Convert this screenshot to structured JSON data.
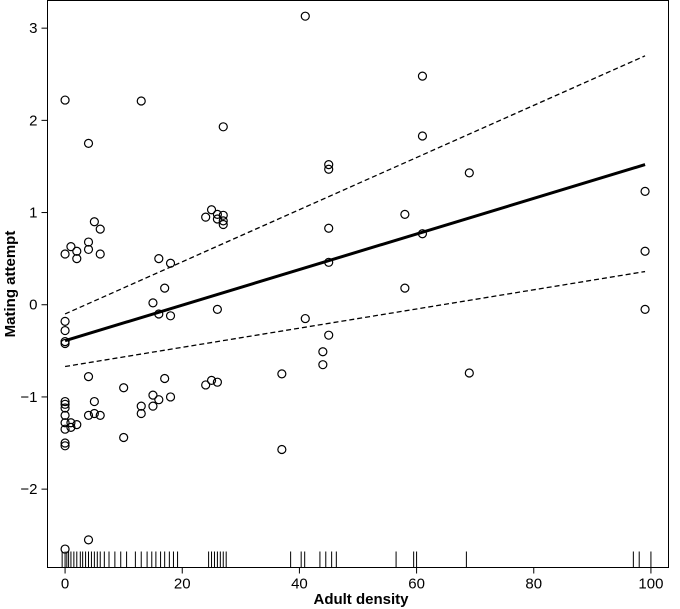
{
  "chart_data": {
    "type": "scatter",
    "xlabel": "Adult density",
    "ylabel": "Mating attempt",
    "xlim": [
      -3,
      103
    ],
    "ylim": [
      -2.85,
      3.3
    ],
    "x_ticks": [
      0,
      20,
      40,
      60,
      80,
      100
    ],
    "y_ticks": [
      -2,
      -1,
      0,
      1,
      2,
      3
    ],
    "grid": false,
    "legend": "none",
    "points": [
      {
        "x": 0,
        "y": 2.22
      },
      {
        "x": 0,
        "y": 0.55
      },
      {
        "x": 0,
        "y": -0.18
      },
      {
        "x": 0,
        "y": -0.28
      },
      {
        "x": 0,
        "y": -0.4
      },
      {
        "x": 0,
        "y": -0.42
      },
      {
        "x": 0,
        "y": -1.05
      },
      {
        "x": 0,
        "y": -1.08
      },
      {
        "x": 0,
        "y": -1.12
      },
      {
        "x": 0,
        "y": -1.2
      },
      {
        "x": 0,
        "y": -1.28
      },
      {
        "x": 0,
        "y": -1.35
      },
      {
        "x": 0,
        "y": -1.5
      },
      {
        "x": 0,
        "y": -1.53
      },
      {
        "x": 0,
        "y": -2.65
      },
      {
        "x": 1,
        "y": 0.63
      },
      {
        "x": 1,
        "y": -1.28
      },
      {
        "x": 1,
        "y": -1.33
      },
      {
        "x": 2,
        "y": 0.58
      },
      {
        "x": 2,
        "y": 0.5
      },
      {
        "x": 2,
        "y": -1.3
      },
      {
        "x": 4,
        "y": 1.75
      },
      {
        "x": 4,
        "y": 0.68
      },
      {
        "x": 4,
        "y": 0.6
      },
      {
        "x": 4,
        "y": -0.78
      },
      {
        "x": 4,
        "y": -1.2
      },
      {
        "x": 4,
        "y": -2.55
      },
      {
        "x": 5,
        "y": 0.9
      },
      {
        "x": 5,
        "y": -1.05
      },
      {
        "x": 5,
        "y": -1.18
      },
      {
        "x": 6,
        "y": 0.82
      },
      {
        "x": 6,
        "y": 0.55
      },
      {
        "x": 6,
        "y": -1.2
      },
      {
        "x": 10,
        "y": -0.9
      },
      {
        "x": 10,
        "y": -1.44
      },
      {
        "x": 13,
        "y": 2.21
      },
      {
        "x": 13,
        "y": -1.1
      },
      {
        "x": 13,
        "y": -1.18
      },
      {
        "x": 15,
        "y": 0.02
      },
      {
        "x": 15,
        "y": -0.98
      },
      {
        "x": 15,
        "y": -1.1
      },
      {
        "x": 16,
        "y": 0.5
      },
      {
        "x": 16,
        "y": -0.1
      },
      {
        "x": 16,
        "y": -1.03
      },
      {
        "x": 17,
        "y": 0.18
      },
      {
        "x": 17,
        "y": -0.8
      },
      {
        "x": 18,
        "y": 0.45
      },
      {
        "x": 18,
        "y": -0.12
      },
      {
        "x": 18,
        "y": -1.0
      },
      {
        "x": 24,
        "y": 0.95
      },
      {
        "x": 24,
        "y": -0.87
      },
      {
        "x": 25,
        "y": 1.03
      },
      {
        "x": 25,
        "y": -0.82
      },
      {
        "x": 26,
        "y": 0.98
      },
      {
        "x": 26,
        "y": 0.93
      },
      {
        "x": 26,
        "y": -0.05
      },
      {
        "x": 26,
        "y": -0.84
      },
      {
        "x": 27,
        "y": 1.93
      },
      {
        "x": 27,
        "y": 0.97
      },
      {
        "x": 27,
        "y": 0.91
      },
      {
        "x": 27,
        "y": 0.87
      },
      {
        "x": 37,
        "y": -0.75
      },
      {
        "x": 37,
        "y": -1.57
      },
      {
        "x": 41,
        "y": 3.13
      },
      {
        "x": 41,
        "y": -0.15
      },
      {
        "x": 44,
        "y": -0.51
      },
      {
        "x": 44,
        "y": -0.65
      },
      {
        "x": 45,
        "y": 1.52
      },
      {
        "x": 45,
        "y": 1.47
      },
      {
        "x": 45,
        "y": 0.83
      },
      {
        "x": 45,
        "y": 0.46
      },
      {
        "x": 45,
        "y": -0.33
      },
      {
        "x": 58,
        "y": 0.98
      },
      {
        "x": 58,
        "y": 0.18
      },
      {
        "x": 61,
        "y": 2.48
      },
      {
        "x": 61,
        "y": 1.83
      },
      {
        "x": 61,
        "y": 0.77
      },
      {
        "x": 69,
        "y": 1.43
      },
      {
        "x": 69,
        "y": -0.74
      },
      {
        "x": 99,
        "y": 1.23
      },
      {
        "x": 99,
        "y": 0.58
      },
      {
        "x": 99,
        "y": -0.05
      }
    ],
    "fit_line": {
      "x": [
        0,
        99
      ],
      "y": [
        -0.39,
        1.52
      ]
    },
    "ci_upper": {
      "x": [
        0,
        99
      ],
      "y": [
        -0.1,
        2.7
      ]
    },
    "ci_lower": {
      "x": [
        0,
        99
      ],
      "y": [
        -0.67,
        0.36
      ]
    },
    "rug": [
      -0.5,
      0,
      0.3,
      0.6,
      1,
      1.5,
      2,
      2.6,
      3,
      3.5,
      4,
      4.5,
      5,
      5.5,
      6,
      6.7,
      7.5,
      8.5,
      9.5,
      10.5,
      12,
      13,
      14,
      14.8,
      15.5,
      16.3,
      17,
      17.8,
      18.5,
      19.2,
      24.5,
      25,
      25.5,
      26,
      26.5,
      27,
      27.5,
      38.5,
      40.3,
      40.9,
      43.5,
      44.5,
      45.5,
      46.3,
      56.5,
      59.5,
      60,
      68.5,
      97,
      98,
      100
    ]
  }
}
